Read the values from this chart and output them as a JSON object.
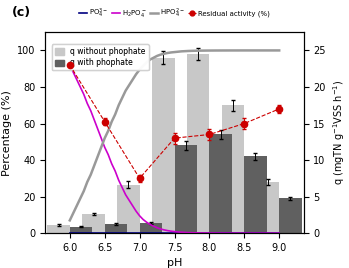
{
  "ph_values": [
    6.0,
    6.5,
    7.0,
    7.5,
    8.0,
    8.5,
    9.0
  ],
  "ph_fine": [
    6.0,
    6.05,
    6.1,
    6.15,
    6.2,
    6.25,
    6.3,
    6.35,
    6.4,
    6.45,
    6.5,
    6.55,
    6.6,
    6.65,
    6.7,
    6.75,
    6.8,
    6.85,
    6.9,
    6.95,
    7.0,
    7.05,
    7.1,
    7.15,
    7.2,
    7.25,
    7.3,
    7.35,
    7.4,
    7.45,
    7.5,
    7.55,
    7.6,
    7.65,
    7.7,
    7.75,
    7.8,
    7.85,
    7.9,
    7.95,
    8.0,
    8.05,
    8.1,
    8.15,
    8.2,
    8.25,
    8.3,
    8.35,
    8.4,
    8.45,
    8.5,
    8.55,
    8.6,
    8.65,
    8.7,
    8.75,
    8.8,
    8.85,
    8.9,
    8.95,
    9.0
  ],
  "PO4_pct": [
    0.0,
    0.0,
    0.0,
    0.0,
    0.0,
    0.0,
    0.0,
    0.0,
    0.0,
    0.0,
    0.0,
    0.0,
    0.0,
    0.0,
    0.0,
    0.0,
    0.0,
    0.0,
    0.0,
    0.0,
    0.0,
    0.0,
    0.0,
    0.0,
    0.0,
    0.0,
    0.0,
    0.0,
    0.0,
    0.0,
    0.0,
    0.0,
    0.0,
    0.0,
    0.0,
    0.0,
    0.0,
    0.0,
    0.0,
    0.0,
    0.0,
    0.0,
    0.0,
    0.0,
    0.0,
    0.0,
    0.0,
    0.0,
    0.0,
    0.0,
    0.0,
    0.0,
    0.0,
    0.0,
    0.0,
    0.0,
    0.0,
    0.0,
    0.0,
    0.0,
    0.0
  ],
  "H2PO4_pct": [
    92,
    88,
    84,
    80,
    76,
    71,
    67,
    62,
    57,
    52,
    47,
    43,
    38,
    34,
    29,
    25,
    21,
    18,
    15,
    12,
    9.5,
    7.5,
    6,
    4.8,
    3.8,
    3,
    2.3,
    1.8,
    1.4,
    1.1,
    0.85,
    0.65,
    0.5,
    0.38,
    0.29,
    0.22,
    0.17,
    0.13,
    0.1,
    0.08,
    0.06,
    0.05,
    0.04,
    0.03,
    0.02,
    0.02,
    0.01,
    0.01,
    0.01,
    0.0,
    0.0,
    0.0,
    0.0,
    0.0,
    0.0,
    0.0,
    0.0,
    0.0,
    0.0,
    0.0,
    0.0
  ],
  "HPO4_pct": [
    7,
    11,
    15,
    19,
    23,
    28,
    32,
    37,
    42,
    47,
    52,
    56,
    61,
    65,
    70,
    74,
    78,
    81,
    84,
    87,
    89.5,
    91.5,
    93.5,
    95,
    96,
    97,
    97.7,
    98.2,
    98.6,
    98.9,
    99.1,
    99.3,
    99.5,
    99.6,
    99.7,
    99.78,
    99.83,
    99.87,
    99.9,
    99.92,
    99.94,
    99.95,
    99.96,
    99.97,
    99.98,
    99.98,
    99.99,
    99.99,
    99.99,
    100,
    100,
    100,
    100,
    100,
    100,
    100,
    100,
    100,
    100,
    100,
    100
  ],
  "q_without": [
    4.5,
    10.5,
    26.5,
    96.0,
    98.0,
    70.0,
    28.0
  ],
  "q_without_err": [
    0.5,
    0.8,
    2.0,
    3.5,
    3.5,
    3.0,
    1.5
  ],
  "q_with": [
    3.5,
    5.0,
    5.5,
    48.0,
    54.0,
    42.0,
    19.0
  ],
  "q_with_err": [
    0.3,
    0.4,
    0.5,
    2.5,
    2.5,
    2.0,
    1.0
  ],
  "residual_activity_pct": [
    92,
    61,
    30,
    52,
    54,
    60,
    68
  ],
  "residual_err_pct": [
    2.0,
    2.0,
    2.0,
    3.0,
    3.0,
    3.0,
    2.0
  ],
  "ylabel_left": "Percentage (%)",
  "ylabel_right": "q (mgTN g$^{-1}$VSS h$^{-1}$)",
  "xlabel": "pH",
  "title": "(c)",
  "ylim_left": [
    0,
    110
  ],
  "ylim_right": [
    0,
    27.5
  ],
  "yticks_left": [
    0,
    20,
    40,
    60,
    80,
    100
  ],
  "yticks_right": [
    0,
    5,
    10,
    15,
    20,
    25
  ],
  "legend_without": "q without phophate",
  "legend_with": "q with phophate",
  "color_PO4": "#000080",
  "color_H2PO4": "#CC00CC",
  "color_HPO4": "#999999",
  "color_residual": "#CC0000",
  "color_bar_without": "#C8C8C8",
  "color_bar_with": "#606060",
  "bar_width": 0.32,
  "label_po4": "PO$_4^{3-}$",
  "label_h2po4": "H$_2$PO$_4^-$",
  "label_hpo4": "HPO$_4^{2-}$",
  "label_residual": "Residual activity (%)"
}
